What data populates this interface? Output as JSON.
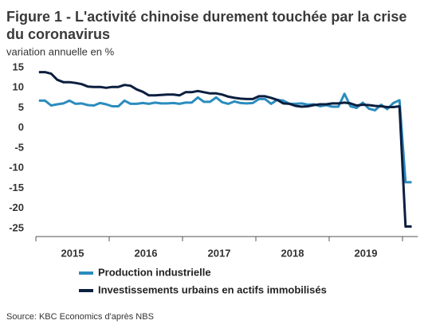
{
  "chart_data": {
    "type": "line",
    "title": "Figure 1 - L'activité chinoise durement touchée par la crise du coronavirus",
    "subtitle": "variation annuelle en %",
    "source": "Source: KBC Economics d'après NBS",
    "categories": [
      null,
      null,
      null,
      null,
      null,
      null,
      "2015",
      null,
      null,
      null,
      null,
      null,
      null,
      null,
      null,
      null,
      null,
      null,
      "2016",
      null,
      null,
      null,
      null,
      null,
      null,
      null,
      null,
      null,
      null,
      null,
      "2017",
      null,
      null,
      null,
      null,
      null,
      null,
      null,
      null,
      null,
      null,
      null,
      "2018",
      null,
      null,
      null,
      null,
      null,
      null,
      null,
      null,
      null,
      null,
      null,
      "2019",
      null,
      null,
      null,
      null,
      null,
      null,
      null
    ],
    "series": [
      {
        "name": "Production industrielle",
        "color": "#2b8cbe",
        "values": [
          6.8,
          6.8,
          5.6,
          5.9,
          6.1,
          6.8,
          6.0,
          6.1,
          5.7,
          5.6,
          6.2,
          5.9,
          5.4,
          5.4,
          6.8,
          6.0,
          6.0,
          6.2,
          6.0,
          6.3,
          6.1,
          6.1,
          6.2,
          6.0,
          6.3,
          6.3,
          7.6,
          6.5,
          6.5,
          7.6,
          6.4,
          6.0,
          6.6,
          6.2,
          6.1,
          6.2,
          7.2,
          7.2,
          6.0,
          7.0,
          6.8,
          6.0,
          6.0,
          6.1,
          5.8,
          5.9,
          5.4,
          5.7,
          5.3,
          5.3,
          8.5,
          5.4,
          5.0,
          6.3,
          4.8,
          4.4,
          5.8,
          4.7,
          6.2,
          6.9,
          -13.5,
          -13.5
        ]
      },
      {
        "name": "Investissements urbains en actifs immobilisés",
        "color": "#0b1f3f",
        "values": [
          13.9,
          13.9,
          13.5,
          12.0,
          11.4,
          11.4,
          11.2,
          10.9,
          10.3,
          10.2,
          10.2,
          10.0,
          10.2,
          10.2,
          10.7,
          10.5,
          9.6,
          9.0,
          8.1,
          8.1,
          8.2,
          8.3,
          8.3,
          8.1,
          8.9,
          8.9,
          9.2,
          8.9,
          8.6,
          8.6,
          8.3,
          7.8,
          7.5,
          7.3,
          7.2,
          7.2,
          7.9,
          7.9,
          7.5,
          7.0,
          6.1,
          6.0,
          5.5,
          5.3,
          5.4,
          5.7,
          5.9,
          5.9,
          6.1,
          6.1,
          6.3,
          6.1,
          5.6,
          5.8,
          5.7,
          5.5,
          5.4,
          5.2,
          5.2,
          5.4,
          -24.5,
          -24.5
        ]
      }
    ],
    "ylim": [
      -27,
      16
    ],
    "yticks": [
      15,
      10,
      5,
      0,
      -5,
      -10,
      -15,
      -20,
      -25
    ],
    "grid": false
  }
}
